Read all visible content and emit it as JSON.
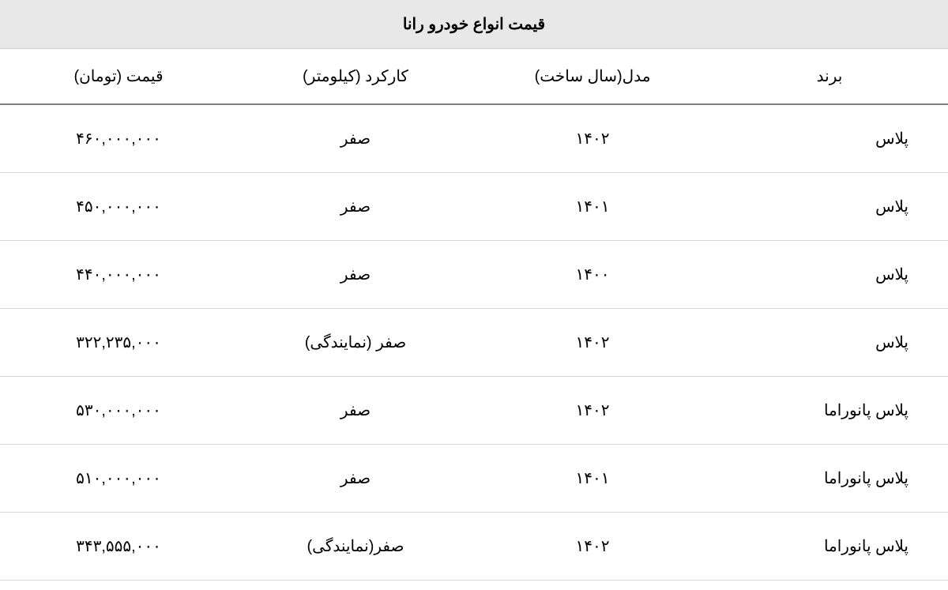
{
  "table": {
    "title": "قیمت انواع خودرو رانا",
    "columns": [
      "برند",
      "مدل(سال ساخت)",
      "کارکرد (کیلومتر)",
      "قیمت (تومان)"
    ],
    "rows": [
      {
        "brand": "پلاس",
        "year": "۱۴۰۲",
        "mileage": "صفر",
        "price": "۴۶۰,۰۰۰,۰۰۰"
      },
      {
        "brand": "پلاس",
        "year": "۱۴۰۱",
        "mileage": "صفر",
        "price": "۴۵۰,۰۰۰,۰۰۰"
      },
      {
        "brand": "پلاس",
        "year": "۱۴۰۰",
        "mileage": "صفر",
        "price": "۴۴۰,۰۰۰,۰۰۰"
      },
      {
        "brand": "پلاس",
        "year": "۱۴۰۲",
        "mileage": "صفر (نمایندگی)",
        "price": "۳۲۲,۲۳۵,۰۰۰"
      },
      {
        "brand": "پلاس پانوراما",
        "year": "۱۴۰۲",
        "mileage": "صفر",
        "price": "۵۳۰,۰۰۰,۰۰۰"
      },
      {
        "brand": "پلاس پانوراما",
        "year": "۱۴۰۱",
        "mileage": "صفر",
        "price": "۵۱۰,۰۰۰,۰۰۰"
      },
      {
        "brand": "پلاس پانوراما",
        "year": "۱۴۰۲",
        "mileage": "صفر(نمایندگی)",
        "price": "۳۴۳,۵۵۵,۰۰۰"
      }
    ],
    "styling": {
      "title_bg_color": "#e8e8e8",
      "header_border_color": "#808080",
      "row_border_color": "#d8d8d8",
      "text_color": "#000000",
      "background_color": "#ffffff",
      "title_fontsize": 20,
      "header_fontsize": 20,
      "cell_fontsize": 20
    }
  }
}
